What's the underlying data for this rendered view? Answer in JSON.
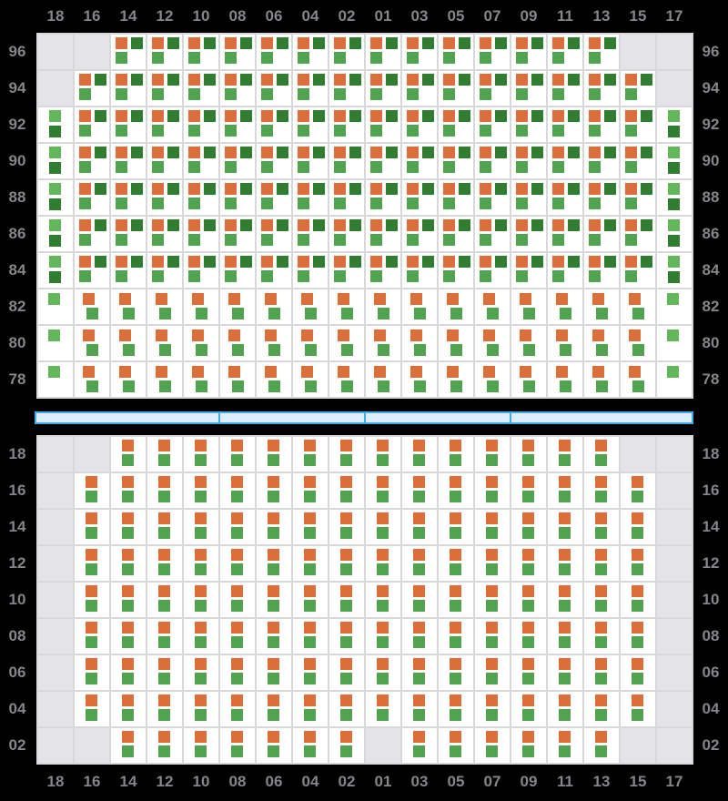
{
  "columns": [
    "18",
    "16",
    "14",
    "12",
    "10",
    "08",
    "06",
    "04",
    "02",
    "01",
    "03",
    "05",
    "07",
    "09",
    "11",
    "13",
    "15",
    "17"
  ],
  "colors": {
    "background": "#000000",
    "cell_bg": "#FFFFFF",
    "empty_cell": "#E4E4E6",
    "grid_line": "#D8D8DA",
    "label_text": "#85858A",
    "orange": "#DC6E39",
    "dark_green": "#2E7D31",
    "mid_green": "#52A34F",
    "light_green": "#63B65A",
    "bar_fill": "#DCEEFB",
    "bar_border": "#41ACE4"
  },
  "cell_types": {
    "T": {
      "desc": "orange top-left, dark-green top-right, green bottom-left",
      "empty": false,
      "squares": [
        {
          "color": "orange",
          "pos": "tl"
        },
        {
          "color": "dark_green",
          "pos": "tr"
        },
        {
          "color": "mid_green",
          "pos": "bl"
        }
      ]
    },
    "G": {
      "desc": "light-green over dark-green, centered",
      "empty": false,
      "squares": [
        {
          "color": "light_green",
          "pos": "tc"
        },
        {
          "color": "dark_green",
          "pos": "bc"
        }
      ]
    },
    "P": {
      "desc": "orange over green, left of center",
      "empty": false,
      "squares": [
        {
          "color": "orange",
          "pos": "pt"
        },
        {
          "color": "mid_green",
          "pos": "pb"
        }
      ]
    },
    "S": {
      "desc": "single green, top",
      "empty": false,
      "squares": [
        {
          "color": "light_green",
          "pos": "st"
        }
      ]
    },
    "V": {
      "desc": "orange over green, centered",
      "empty": false,
      "squares": [
        {
          "color": "orange",
          "pos": "vt"
        },
        {
          "color": "mid_green",
          "pos": "vb"
        }
      ]
    },
    "E": {
      "desc": "empty gray cell",
      "empty": true,
      "squares": []
    }
  },
  "top_grid": {
    "rows": [
      {
        "label": "96",
        "cells": "EETTTTTTTTTTTTTTEE"
      },
      {
        "label": "94",
        "cells": "ETTTTTTTTTTTTTTTTE"
      },
      {
        "label": "92",
        "cells": "GTTTTTTTTTTTTTTTTG"
      },
      {
        "label": "90",
        "cells": "GTTTTTTTTTTTTTTTTG"
      },
      {
        "label": "88",
        "cells": "GTTTTTTTTTTTTTTTTG"
      },
      {
        "label": "86",
        "cells": "GTTTTTTTTTTTTTTTTG"
      },
      {
        "label": "84",
        "cells": "GTTTTTTTTTTTTTTTTG"
      },
      {
        "label": "82",
        "cells": "SPPPPPPPPPPPPPPPPS"
      },
      {
        "label": "80",
        "cells": "SPPPPPPPPPPPPPPPPS"
      },
      {
        "label": "78",
        "cells": "SPPPPPPPPPPPPPPPPS"
      }
    ]
  },
  "bottom_grid": {
    "rows": [
      {
        "label": "18",
        "cells": "EEVVVVVVVVVVVVVVEE"
      },
      {
        "label": "16",
        "cells": "EVVVVVVVVVVVVVVVVE"
      },
      {
        "label": "14",
        "cells": "EVVVVVVVVVVVVVVVVE"
      },
      {
        "label": "12",
        "cells": "EVVVVVVVVVVVVVVVVE"
      },
      {
        "label": "10",
        "cells": "EVVVVVVVVVVVVVVVVE"
      },
      {
        "label": "08",
        "cells": "EVVVVVVVVVVVVVVVVE"
      },
      {
        "label": "06",
        "cells": "EVVVVVVVVVVVVVVVVE"
      },
      {
        "label": "04",
        "cells": "EVVVVVVVVVVVVVVVVE"
      },
      {
        "label": "02",
        "cells": "EEVVVVVVVEVVVVVVEE"
      }
    ]
  },
  "divider_bar": {
    "segment_widths": [
      200,
      160,
      160,
      200
    ]
  }
}
